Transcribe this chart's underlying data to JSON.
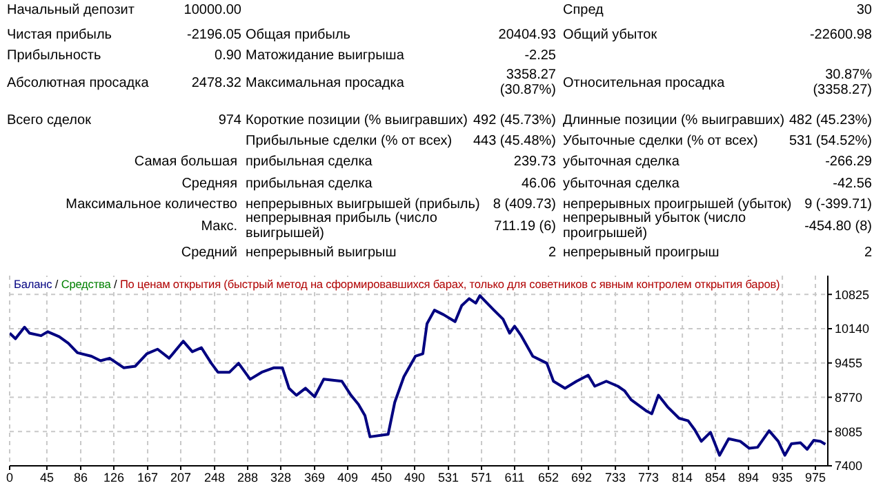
{
  "chart_data": {
    "type": "line",
    "legend": "top left",
    "grid": true,
    "annotations": [
      "Начальный депозит",
      "10000.00",
      "Спред",
      "30",
      "Чистая прибыль",
      "-2196.05",
      "Общая прибыль",
      "20404.93",
      "Общий убыток",
      "-22600.98",
      "Прибыльность",
      "0.90",
      "Матожидание выигрыша",
      "-2.25",
      "Абсолютная просадка",
      "2478.32",
      "Максимальная просадка",
      "3358.27 (30.87%)",
      "Относительная просадка",
      "30.87% (3358.27)",
      "Всего сделок",
      "974",
      "Короткие позиции (% выигравших)",
      "492 (45.73%)",
      "Длинные позиции (% выигравших)",
      "482 (45.23%)",
      "Прибыльные сделки (% от всех)",
      "443 (45.48%)",
      "Убыточные сделки (% от всех)",
      "531 (54.52%)",
      "Самая большая",
      "прибыльная сделка",
      "239.73",
      "убыточная сделка",
      "-266.29",
      "Средняя",
      "прибыльная сделка",
      "46.06",
      "убыточная сделка",
      "-42.56",
      "Максимальное количество",
      "непрерывных выигрышей (прибыль)",
      "8 (409.73)",
      "непрерывных проигрышей (убыток)",
      "9 (-399.71)",
      "Макс.",
      "непрерывная прибыль (число выигрышей)",
      "711.19 (6)",
      "непрерывный убыток (число проигрышей)",
      "-454.80 (8)",
      "Средний",
      "непрерывный выигрыш",
      "2",
      "непрерывный проигрыш",
      "2",
      "Средства",
      "/",
      "По ценам открытия (быстрый метод на сформировавшихся барах, только для советников с явным контролем открытия баров)"
    ],
    "xlim": [
      0,
      990
    ],
    "xticks": [
      0,
      45,
      86,
      126,
      167,
      207,
      248,
      288,
      328,
      369,
      409,
      450,
      490,
      531,
      571,
      611,
      652,
      692,
      733,
      773,
      814,
      854,
      894,
      935,
      975
    ],
    "ylim": [
      7400,
      11200
    ],
    "yticks": [
      7400,
      8085,
      8770,
      9455,
      10140,
      10825
    ],
    "series": [
      {
        "name": "Баланс",
        "color": "#000080",
        "x": [
          0,
          7,
          18,
          24,
          38,
          46,
          60,
          71,
          82,
          99,
          110,
          121,
          138,
          152,
          166,
          179,
          193,
          210,
          221,
          232,
          244,
          252,
          266,
          277,
          291,
          305,
          320,
          330,
          338,
          347,
          358,
          369,
          380,
          402,
          413,
          422,
          430,
          436,
          458,
          466,
          477,
          491,
          500,
          505,
          514,
          525,
          539,
          547,
          556,
          564,
          569,
          586,
          597,
          605,
          611,
          619,
          633,
          650,
          658,
          672,
          686,
          700,
          708,
          722,
          736,
          744,
          752,
          771,
          777,
          785,
          796,
          810,
          821,
          829,
          837,
          848,
          859,
          870,
          884,
          895,
          905,
          919,
          930,
          938,
          946,
          957,
          965,
          973,
          981,
          987
        ],
        "values": [
          10050,
          9940,
          10170,
          10050,
          10000,
          10080,
          9980,
          9850,
          9660,
          9590,
          9500,
          9550,
          9360,
          9390,
          9640,
          9730,
          9550,
          9890,
          9680,
          9760,
          9450,
          9270,
          9270,
          9450,
          9130,
          9270,
          9360,
          9360,
          8950,
          8810,
          8950,
          8780,
          9130,
          9090,
          8810,
          8630,
          8400,
          7980,
          8030,
          8670,
          9180,
          9590,
          9640,
          10240,
          10510,
          10420,
          10280,
          10600,
          10740,
          10650,
          10800,
          10510,
          10330,
          10050,
          10190,
          10000,
          9590,
          9450,
          9090,
          8950,
          9090,
          9210,
          8990,
          9090,
          8990,
          8900,
          8720,
          8490,
          8440,
          8810,
          8580,
          8350,
          8300,
          8120,
          7890,
          8070,
          7610,
          7940,
          7890,
          7750,
          7770,
          8100,
          7890,
          7610,
          7840,
          7860,
          7730,
          7910,
          7890,
          7830
        ]
      }
    ]
  }
}
